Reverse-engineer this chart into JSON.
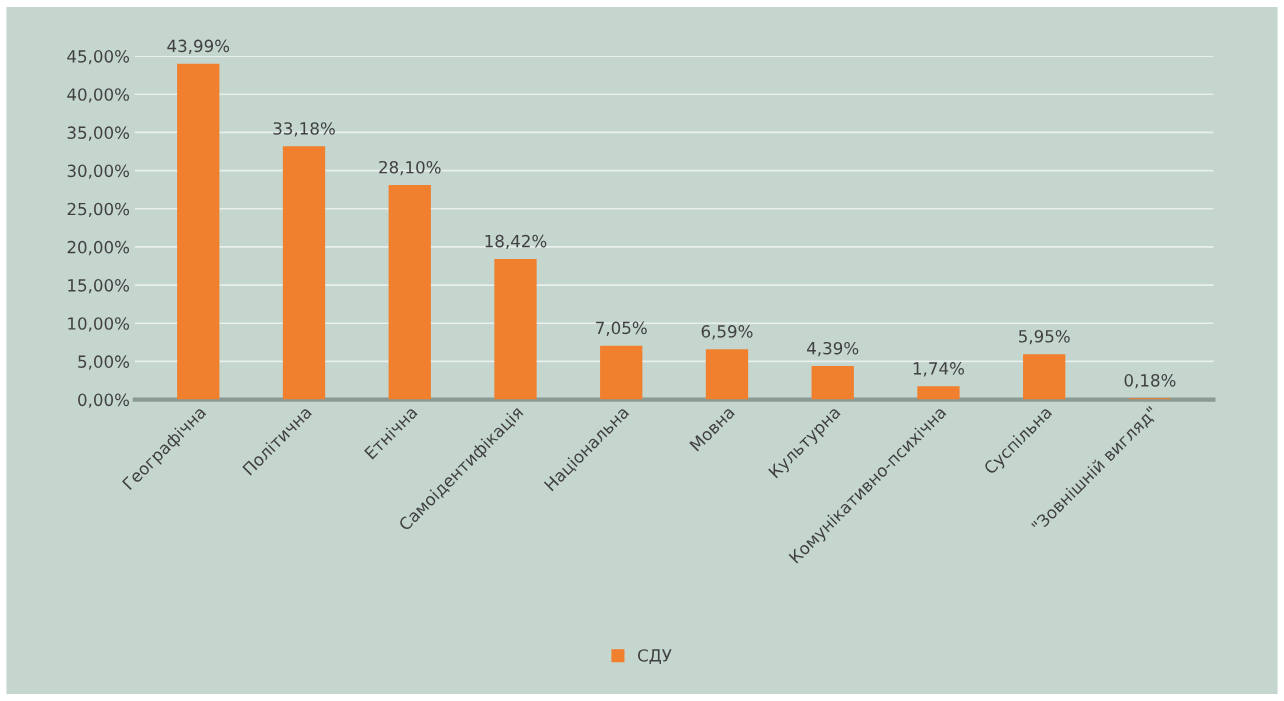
{
  "chart_data": {
    "type": "bar",
    "categories": [
      "Географічна",
      "Політична",
      "Етнічна",
      "Самоідентифікація",
      "Національна",
      "Мовна",
      "Культурна",
      "Комунікативно-психічна",
      "Суспільна",
      "\"Зовнішній вигляд\""
    ],
    "series": [
      {
        "name": "СДУ",
        "color": "#f07f2e",
        "values": [
          43.99,
          33.18,
          28.1,
          18.42,
          7.05,
          6.59,
          4.39,
          1.74,
          5.95,
          0.18
        ],
        "value_labels": [
          "43,99%",
          "33,18%",
          "28,10%",
          "18,42%",
          "7,05%",
          "6,59%",
          "4,39%",
          "1,74%",
          "5,95%",
          "0,18%"
        ]
      }
    ],
    "ylim": [
      0,
      45
    ],
    "yticks": [
      {
        "value": 0,
        "label": "0,00%"
      },
      {
        "value": 5,
        "label": "5,00%"
      },
      {
        "value": 10,
        "label": "10,00%"
      },
      {
        "value": 15,
        "label": "15,00%"
      },
      {
        "value": 20,
        "label": "20,00%"
      },
      {
        "value": 25,
        "label": "25,00%"
      },
      {
        "value": 30,
        "label": "30,00%"
      },
      {
        "value": 35,
        "label": "35,00%"
      },
      {
        "value": 40,
        "label": "40,00%"
      },
      {
        "value": 45,
        "label": "45,00%"
      }
    ],
    "grid": "y",
    "legend": "bottom"
  }
}
